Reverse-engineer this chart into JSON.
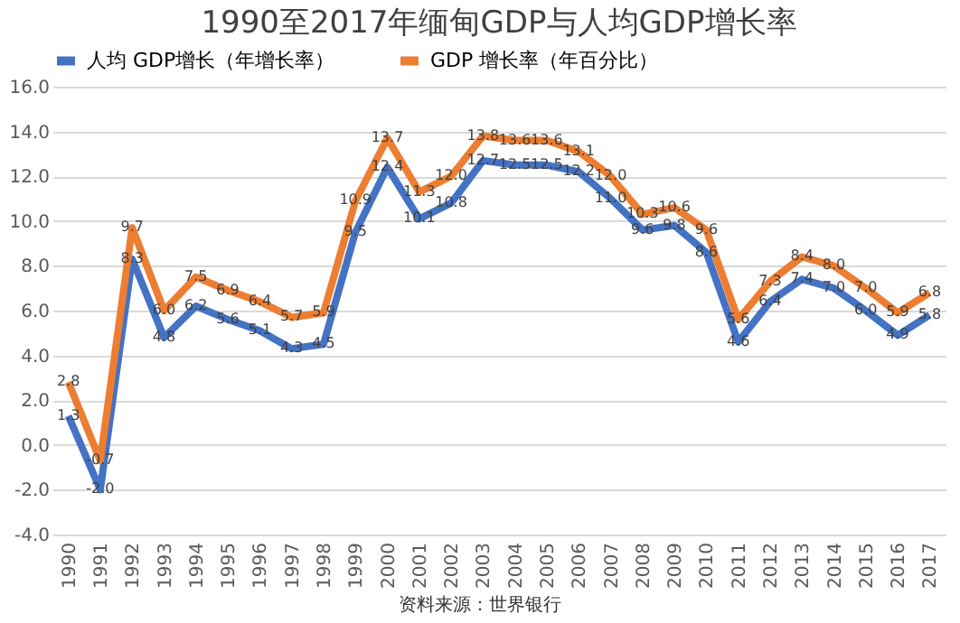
{
  "chart_data": {
    "type": "line",
    "title": "1990至2017年缅甸GDP与人均GDP增长率",
    "categories": [
      "1990",
      "1991",
      "1992",
      "1993",
      "1994",
      "1995",
      "1996",
      "1997",
      "1998",
      "1999",
      "2000",
      "2001",
      "2002",
      "2003",
      "2004",
      "2005",
      "2006",
      "2007",
      "2008",
      "2009",
      "2010",
      "2011",
      "2012",
      "2013",
      "2014",
      "2015",
      "2016",
      "2017"
    ],
    "series": [
      {
        "name": "人均 GDP增长（年增长率）",
        "color": "#4472c4",
        "values": [
          1.3,
          -2.0,
          8.3,
          4.8,
          6.2,
          5.6,
          5.1,
          4.3,
          4.5,
          9.5,
          12.4,
          10.1,
          10.8,
          12.7,
          12.5,
          12.5,
          12.2,
          11.0,
          9.6,
          9.8,
          8.6,
          4.6,
          6.4,
          7.4,
          7.0,
          6.0,
          4.9,
          5.8
        ],
        "value_labels": [
          "1.3",
          "-2.0",
          "8.3",
          "4.8",
          "6.2",
          "5.6",
          "5.1",
          "4.3",
          "4.5",
          "9.5",
          "12.4",
          "10.1",
          "10.8",
          "12.7",
          "12.5",
          "12.5",
          "12.2",
          "11.0",
          "9.6",
          "9.8",
          "8.6",
          "4.6",
          "6.4",
          "7.4",
          "7.0",
          "6.0",
          "4.9",
          "5.8"
        ]
      },
      {
        "name": "GDP 增长率（年百分比）",
        "color": "#ed7d31",
        "values": [
          2.8,
          -0.7,
          9.7,
          6.0,
          7.5,
          6.9,
          6.4,
          5.7,
          5.9,
          10.9,
          13.7,
          11.3,
          12.0,
          13.8,
          13.6,
          13.6,
          13.1,
          12.0,
          10.3,
          10.6,
          9.6,
          5.6,
          7.3,
          8.4,
          8.0,
          7.0,
          5.9,
          6.8
        ],
        "value_labels": [
          "2.8",
          "-0.7",
          "9.7",
          "6.0",
          "7.5",
          "6.9",
          "6.4",
          "5.7",
          "5.9",
          "10.9",
          "13.7",
          "11.3",
          "12.0",
          "13.8",
          "13.6",
          "13.6",
          "13.1",
          "12.0",
          "10.3",
          "10.6",
          "9.6",
          "5.6",
          "7.3",
          "8.4",
          "8.0",
          "7.0",
          "5.9",
          "6.8"
        ]
      }
    ],
    "ylim": [
      -4,
      16
    ],
    "yticks": [
      {
        "value": -4,
        "label": "-4.0"
      },
      {
        "value": -2,
        "label": "-2.0"
      },
      {
        "value": 0,
        "label": "0.0"
      },
      {
        "value": 2,
        "label": "2.0"
      },
      {
        "value": 4,
        "label": "4.0"
      },
      {
        "value": 6,
        "label": "6.0"
      },
      {
        "value": 8,
        "label": "8.0"
      },
      {
        "value": 10,
        "label": "10.0"
      },
      {
        "value": 12,
        "label": "12.0"
      },
      {
        "value": 14,
        "label": "14.0"
      },
      {
        "value": 16,
        "label": "16.0"
      }
    ],
    "grid": "y",
    "legend": "top",
    "line_style": "solid",
    "annotations": [
      "资料来源：世界银行"
    ]
  }
}
